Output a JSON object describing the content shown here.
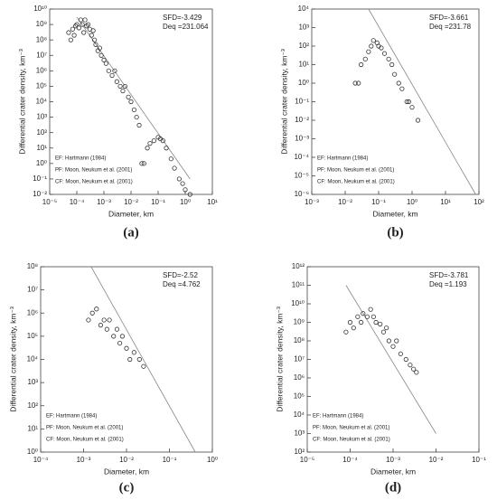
{
  "chart_data": [
    {
      "type": "scatter",
      "panel": "(a)",
      "xlog": true,
      "ylog": true,
      "color": "#333333",
      "xlabel": "Diameter, km",
      "ylabel": "Differential crater density, km⁻³",
      "annotations": [
        "SFD=-3.429",
        "Deq =231.064"
      ],
      "legend_notes": [
        "EF: Hartmann (1984)",
        "PF: Moon, Neukum et al. (2001)",
        "CF: Moon, Neukum et al. (2001)"
      ],
      "xlim": [
        1e-05,
        10
      ],
      "xticks": [
        {
          "value": 1e-05,
          "label": "10⁻⁵"
        },
        {
          "value": 0.0001,
          "label": "10⁻⁴"
        },
        {
          "value": 0.001,
          "label": "10⁻³"
        },
        {
          "value": 0.01,
          "label": "10⁻²"
        },
        {
          "value": 0.1,
          "label": "10⁻¹"
        },
        {
          "value": 1,
          "label": "10⁰"
        },
        {
          "value": 10,
          "label": "10¹"
        }
      ],
      "ylim": [
        0.01,
        10000000000.0
      ],
      "yticks": [
        {
          "value": 0.01,
          "label": "10⁻²"
        },
        {
          "value": 0.1,
          "label": "10⁻¹"
        },
        {
          "value": 1,
          "label": "10⁰"
        },
        {
          "value": 10,
          "label": "10¹"
        },
        {
          "value": 100,
          "label": "10²"
        },
        {
          "value": 1000.0,
          "label": "10³"
        },
        {
          "value": 10000.0,
          "label": "10⁴"
        },
        {
          "value": 100000.0,
          "label": "10⁵"
        },
        {
          "value": 1000000.0,
          "label": "10⁶"
        },
        {
          "value": 10000000.0,
          "label": "10⁷"
        },
        {
          "value": 100000000.0,
          "label": "10⁸"
        },
        {
          "value": 1000000000.0,
          "label": "10⁹"
        },
        {
          "value": 10000000000.0,
          "label": "10¹⁰"
        }
      ],
      "x": [
        5e-05,
        6e-05,
        7e-05,
        8e-05,
        9e-05,
        0.0001,
        0.00012,
        0.00014,
        0.00016,
        0.00018,
        0.0002,
        0.00023,
        0.00026,
        0.0003,
        0.00035,
        0.0004,
        0.00045,
        0.0005,
        0.0006,
        0.0007,
        0.0008,
        0.001,
        0.0012,
        0.0015,
        0.002,
        0.0025,
        0.003,
        0.004,
        0.005,
        0.006,
        0.008,
        0.01,
        0.013,
        0.016,
        0.02,
        0.025,
        0.03,
        0.04,
        0.05,
        0.07,
        0.1,
        0.12,
        0.15,
        0.2,
        0.3,
        0.4,
        0.6,
        0.8,
        1,
        1.5
      ],
      "values": [
        300000000.0,
        100000000.0,
        500000000.0,
        200000000.0,
        800000000.0,
        1000000000.0,
        600000000.0,
        2000000000.0,
        1000000000.0,
        300000000.0,
        2000000000.0,
        800000000.0,
        1000000000.0,
        500000000.0,
        200000000.0,
        400000000.0,
        100000000.0,
        50000000.0,
        20000000.0,
        30000000.0,
        10000000.0,
        5000000.0,
        3000000.0,
        1000000.0,
        500000.0,
        1000000.0,
        200000.0,
        100000.0,
        50000.0,
        100000.0,
        20000.0,
        10000.0,
        3000.0,
        1000.0,
        300,
        1,
        1,
        10,
        20,
        30,
        50,
        40,
        30,
        10,
        2,
        0.5,
        0.1,
        0.05,
        0.02,
        0.01
      ],
      "fit": {
        "x": [
          0.0001,
          1.5
        ],
        "y": [
          3000000000.0,
          0.1
        ]
      }
    },
    {
      "type": "scatter",
      "panel": "(b)",
      "xlog": true,
      "ylog": true,
      "color": "#333333",
      "xlabel": "Diameter, km",
      "ylabel": "Differential crater density, km⁻³",
      "annotations": [
        "SFD=-3.661",
        "Deq =231.78"
      ],
      "legend_notes": [
        "EF: Hartmann (1984)",
        "PF: Moon, Neukum et al. (2001)",
        "CF: Moon, Neukum et al. (2001)"
      ],
      "xlim": [
        0.001,
        100
      ],
      "xticks": [
        {
          "value": 0.001,
          "label": "10⁻³"
        },
        {
          "value": 0.01,
          "label": "10⁻²"
        },
        {
          "value": 0.1,
          "label": "10⁻¹"
        },
        {
          "value": 1,
          "label": "10⁰"
        },
        {
          "value": 10,
          "label": "10¹"
        },
        {
          "value": 100,
          "label": "10²"
        }
      ],
      "ylim": [
        1e-06,
        10000.0
      ],
      "yticks": [
        {
          "value": 1e-06,
          "label": "10⁻⁶"
        },
        {
          "value": 1e-05,
          "label": "10⁻⁵"
        },
        {
          "value": 0.0001,
          "label": "10⁻⁴"
        },
        {
          "value": 0.001,
          "label": "10⁻³"
        },
        {
          "value": 0.01,
          "label": "10⁻²"
        },
        {
          "value": 0.1,
          "label": "10⁻¹"
        },
        {
          "value": 1,
          "label": "10⁰"
        },
        {
          "value": 10,
          "label": "10¹"
        },
        {
          "value": 100,
          "label": "10²"
        },
        {
          "value": 1000.0,
          "label": "10³"
        },
        {
          "value": 10000.0,
          "label": "10⁴"
        }
      ],
      "x": [
        0.02,
        0.025,
        0.03,
        0.04,
        0.05,
        0.06,
        0.07,
        0.09,
        0.1,
        0.12,
        0.15,
        0.2,
        0.25,
        0.3,
        0.4,
        0.5,
        0.7,
        0.8,
        1,
        1.5
      ],
      "values": [
        1,
        1,
        10,
        20,
        50,
        100,
        200,
        150,
        100,
        80,
        40,
        20,
        10,
        3,
        1,
        0.5,
        0.1,
        0.1,
        0.05,
        0.01
      ],
      "fit": {
        "x": [
          0.05,
          80
        ],
        "y": [
          10000.0,
          1e-06
        ]
      }
    },
    {
      "type": "scatter",
      "panel": "(c)",
      "xlog": true,
      "ylog": true,
      "color": "#333333",
      "xlabel": "Diameter, km",
      "ylabel": "Differential crater density, km⁻³",
      "annotations": [
        "SFD=-2.52",
        "Deq =4.762"
      ],
      "legend_notes": [
        "EF: Hartmann (1984)",
        "PF: Moon, Neukum et al. (2001)",
        "CF: Moon, Neukum et al. (2001)"
      ],
      "xlim": [
        0.0001,
        1
      ],
      "xticks": [
        {
          "value": 0.0001,
          "label": "10⁻⁴"
        },
        {
          "value": 0.001,
          "label": "10⁻³"
        },
        {
          "value": 0.01,
          "label": "10⁻²"
        },
        {
          "value": 0.1,
          "label": "10⁻¹"
        },
        {
          "value": 1,
          "label": "10⁰"
        }
      ],
      "ylim": [
        1,
        100000000.0
      ],
      "yticks": [
        {
          "value": 1,
          "label": "10⁰"
        },
        {
          "value": 10,
          "label": "10¹"
        },
        {
          "value": 100,
          "label": "10²"
        },
        {
          "value": 1000.0,
          "label": "10³"
        },
        {
          "value": 10000.0,
          "label": "10⁴"
        },
        {
          "value": 100000.0,
          "label": "10⁵"
        },
        {
          "value": 1000000.0,
          "label": "10⁶"
        },
        {
          "value": 10000000.0,
          "label": "10⁷"
        },
        {
          "value": 100000000.0,
          "label": "10⁸"
        }
      ],
      "x": [
        0.0013,
        0.0016,
        0.002,
        0.0025,
        0.003,
        0.0035,
        0.004,
        0.005,
        0.006,
        0.007,
        0.008,
        0.01,
        0.012,
        0.015,
        0.02,
        0.025
      ],
      "values": [
        500000.0,
        1000000.0,
        1500000.0,
        300000.0,
        500000.0,
        200000.0,
        500000.0,
        100000.0,
        200000.0,
        50000.0,
        100000.0,
        30000.0,
        10000.0,
        20000.0,
        10000.0,
        5000.0
      ],
      "fit": {
        "x": [
          0.0015,
          0.4
        ],
        "y": [
          100000000.0,
          1
        ]
      }
    },
    {
      "type": "scatter",
      "panel": "(d)",
      "xlog": true,
      "ylog": true,
      "color": "#333333",
      "xlabel": "Diameter, km",
      "ylabel": "Differential crater density, km⁻³",
      "annotations": [
        "SFD=-3.781",
        "Deq =1.193"
      ],
      "legend_notes": [
        "EF: Hartmann (1984)",
        "PF: Moon, Neukum et al. (2001)",
        "CF: Moon, Neukum et al. (2001)"
      ],
      "xlim": [
        1e-05,
        0.1
      ],
      "xticks": [
        {
          "value": 1e-05,
          "label": "10⁻⁵"
        },
        {
          "value": 0.0001,
          "label": "10⁻⁴"
        },
        {
          "value": 0.001,
          "label": "10⁻³"
        },
        {
          "value": 0.01,
          "label": "10⁻²"
        },
        {
          "value": 0.1,
          "label": "10⁻¹"
        }
      ],
      "ylim": [
        100,
        1000000000000.0
      ],
      "yticks": [
        {
          "value": 100,
          "label": "10²"
        },
        {
          "value": 1000.0,
          "label": "10³"
        },
        {
          "value": 10000.0,
          "label": "10⁴"
        },
        {
          "value": 100000.0,
          "label": "10⁵"
        },
        {
          "value": 1000000.0,
          "label": "10⁶"
        },
        {
          "value": 10000000.0,
          "label": "10⁷"
        },
        {
          "value": 100000000.0,
          "label": "10⁸"
        },
        {
          "value": 1000000000.0,
          "label": "10⁹"
        },
        {
          "value": 10000000000.0,
          "label": "10¹⁰"
        },
        {
          "value": 100000000000.0,
          "label": "10¹¹"
        },
        {
          "value": 1000000000000.0,
          "label": "10¹²"
        }
      ],
      "x": [
        8e-05,
        0.0001,
        0.00012,
        0.00015,
        0.00018,
        0.0002,
        0.00025,
        0.0003,
        0.00035,
        0.0004,
        0.0005,
        0.0006,
        0.0007,
        0.0008,
        0.001,
        0.0012,
        0.0015,
        0.002,
        0.0025,
        0.003,
        0.0035
      ],
      "values": [
        300000000.0,
        1000000000.0,
        500000000.0,
        2000000000.0,
        1000000000.0,
        3000000000.0,
        2000000000.0,
        5000000000.0,
        2000000000.0,
        1000000000.0,
        800000000.0,
        300000000.0,
        500000000.0,
        100000000.0,
        50000000.0,
        100000000.0,
        20000000.0,
        10000000.0,
        5000000.0,
        3000000.0,
        2000000.0
      ],
      "fit": {
        "x": [
          8e-05,
          0.01
        ],
        "y": [
          100000000000.0,
          1000.0
        ]
      }
    }
  ]
}
